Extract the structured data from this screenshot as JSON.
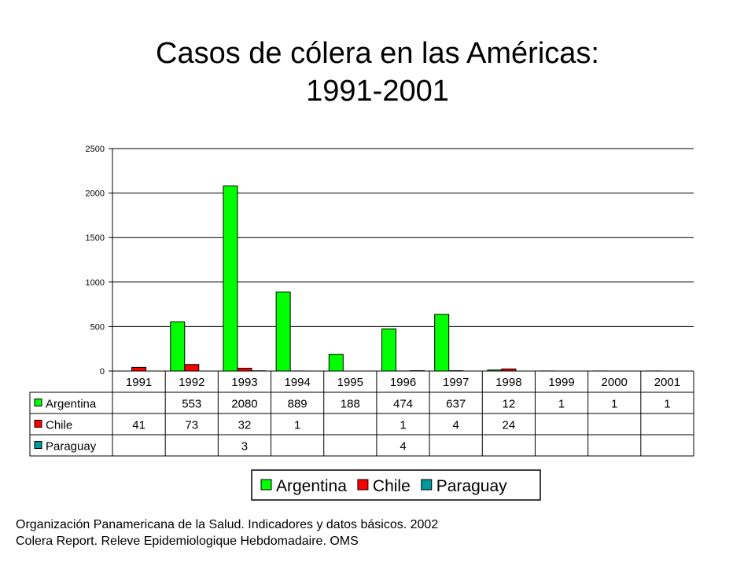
{
  "title_line1": "Casos de cólera en las Américas:",
  "title_line2": "1991-2001",
  "source_line1": "Organización Panamericana de la Salud. Indicadores y datos básicos. 2002",
  "source_line2": "Colera Report. Releve Epidemiologique Hebdomadaire. OMS",
  "chart_data": {
    "type": "bar",
    "categories": [
      "1991",
      "1992",
      "1993",
      "1994",
      "1995",
      "1996",
      "1997",
      "1998",
      "1999",
      "2000",
      "2001"
    ],
    "ylim": [
      0,
      2500
    ],
    "yticks": [
      0,
      500,
      1000,
      1500,
      2000,
      2500
    ],
    "grid": true,
    "legend_position": "bottom",
    "series": [
      {
        "name": "Argentina",
        "color": "#00ff00",
        "values": [
          null,
          553,
          2080,
          889,
          188,
          474,
          637,
          12,
          1,
          1,
          1
        ]
      },
      {
        "name": "Chile",
        "color": "#ff0000",
        "values": [
          41,
          73,
          32,
          1,
          null,
          1,
          4,
          24,
          null,
          null,
          null
        ]
      },
      {
        "name": "Paraguay",
        "color": "#009999",
        "values": [
          null,
          null,
          3,
          null,
          null,
          4,
          null,
          null,
          null,
          null,
          null
        ]
      }
    ]
  }
}
